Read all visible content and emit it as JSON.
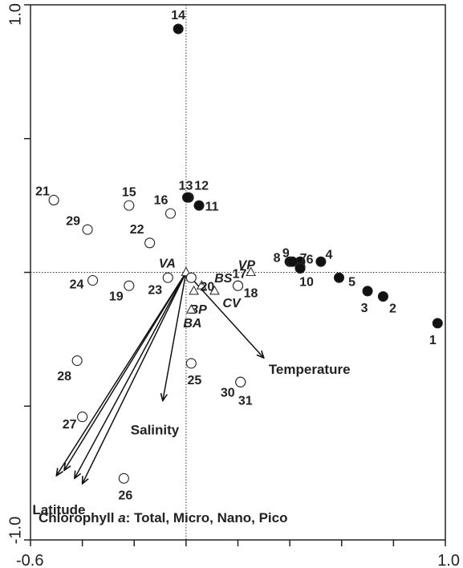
{
  "chart_data": {
    "type": "scatter",
    "xlim": [
      -0.6,
      1.0
    ],
    "ylim": [
      -1.0,
      1.0
    ],
    "x_ticks": [
      {
        "value": -0.6,
        "label": "-0.6"
      },
      {
        "value": 1.0,
        "label": "1.0"
      }
    ],
    "y_ticks": [
      {
        "value": 1.0,
        "label": "1.0"
      },
      {
        "value": -1.0,
        "label": "-1.0"
      }
    ],
    "minor_ticks_x": [
      -0.4,
      -0.2,
      0.0,
      0.2,
      0.4,
      0.6,
      0.8
    ],
    "minor_ticks_y": [
      0.5,
      0.0,
      -0.5
    ],
    "reference_lines": {
      "x": 0.0,
      "y": 0.0,
      "style": "dotted"
    },
    "filled_points": [
      {
        "label": "1",
        "x": 0.97,
        "y": -0.19
      },
      {
        "label": "2",
        "x": 0.76,
        "y": -0.09
      },
      {
        "label": "3",
        "x": 0.7,
        "y": -0.07
      },
      {
        "label": "4",
        "x": 0.52,
        "y": 0.04
      },
      {
        "label": "5",
        "x": 0.59,
        "y": -0.02
      },
      {
        "label": "6",
        "x": 0.44,
        "y": 0.04
      },
      {
        "label": "7",
        "x": 0.44,
        "y": 0.02
      },
      {
        "label": "8",
        "x": 0.4,
        "y": 0.04
      },
      {
        "label": "9",
        "x": 0.41,
        "y": 0.04
      },
      {
        "label": "10",
        "x": 0.44,
        "y": 0.015
      },
      {
        "label": "11",
        "x": 0.05,
        "y": 0.25
      },
      {
        "label": "12",
        "x": 0.01,
        "y": 0.28
      },
      {
        "label": "13",
        "x": 0.005,
        "y": 0.28
      },
      {
        "label": "14",
        "x": -0.03,
        "y": 0.91
      }
    ],
    "open_points": [
      {
        "label": "15",
        "x": -0.22,
        "y": 0.25
      },
      {
        "label": "16",
        "x": -0.06,
        "y": 0.22
      },
      {
        "label": "17",
        "x": 0.2,
        "y": -0.05
      },
      {
        "label": "18",
        "x": 0.2,
        "y": -0.05
      },
      {
        "label": "19",
        "x": -0.22,
        "y": -0.05
      },
      {
        "label": "20",
        "x": 0.02,
        "y": -0.02
      },
      {
        "label": "21",
        "x": -0.51,
        "y": 0.27
      },
      {
        "label": "22",
        "x": -0.14,
        "y": 0.11
      },
      {
        "label": "23",
        "x": -0.07,
        "y": -0.02
      },
      {
        "label": "24",
        "x": -0.36,
        "y": -0.03
      },
      {
        "label": "25",
        "x": 0.02,
        "y": -0.34
      },
      {
        "label": "26",
        "x": -0.24,
        "y": -0.77
      },
      {
        "label": "27",
        "x": -0.4,
        "y": -0.54
      },
      {
        "label": "28",
        "x": -0.42,
        "y": -0.33
      },
      {
        "label": "29",
        "x": -0.38,
        "y": 0.16
      },
      {
        "label": "30",
        "x": 0.21,
        "y": -0.41
      },
      {
        "label": "31",
        "x": 0.21,
        "y": -0.41
      }
    ],
    "species": [
      {
        "label": "VA",
        "x": 0.0,
        "y": 0.0
      },
      {
        "label": "BS",
        "x": 0.06,
        "y": -0.05
      },
      {
        "label": "BP",
        "x": 0.03,
        "y": -0.07
      },
      {
        "label": "BA",
        "x": 0.02,
        "y": -0.14
      },
      {
        "label": "CV",
        "x": 0.11,
        "y": -0.07
      },
      {
        "label": "VP",
        "x": 0.25,
        "y": 0.0
      }
    ],
    "vectors": [
      {
        "label": "Temperature",
        "x": 0.3,
        "y": -0.32
      },
      {
        "label": "Salinity",
        "x": -0.09,
        "y": -0.48
      },
      {
        "label": "Latitude",
        "x": -0.5,
        "y": -0.76
      },
      {
        "label": "",
        "x": -0.47,
        "y": -0.74
      },
      {
        "label": "",
        "x": -0.43,
        "y": -0.77
      },
      {
        "label": "",
        "x": -0.4,
        "y": -0.79
      }
    ]
  },
  "caption": {
    "prefix": "Chlorophyll",
    "symbol": "a",
    "rest": ":  Total, Micro, Nano, Pico"
  }
}
